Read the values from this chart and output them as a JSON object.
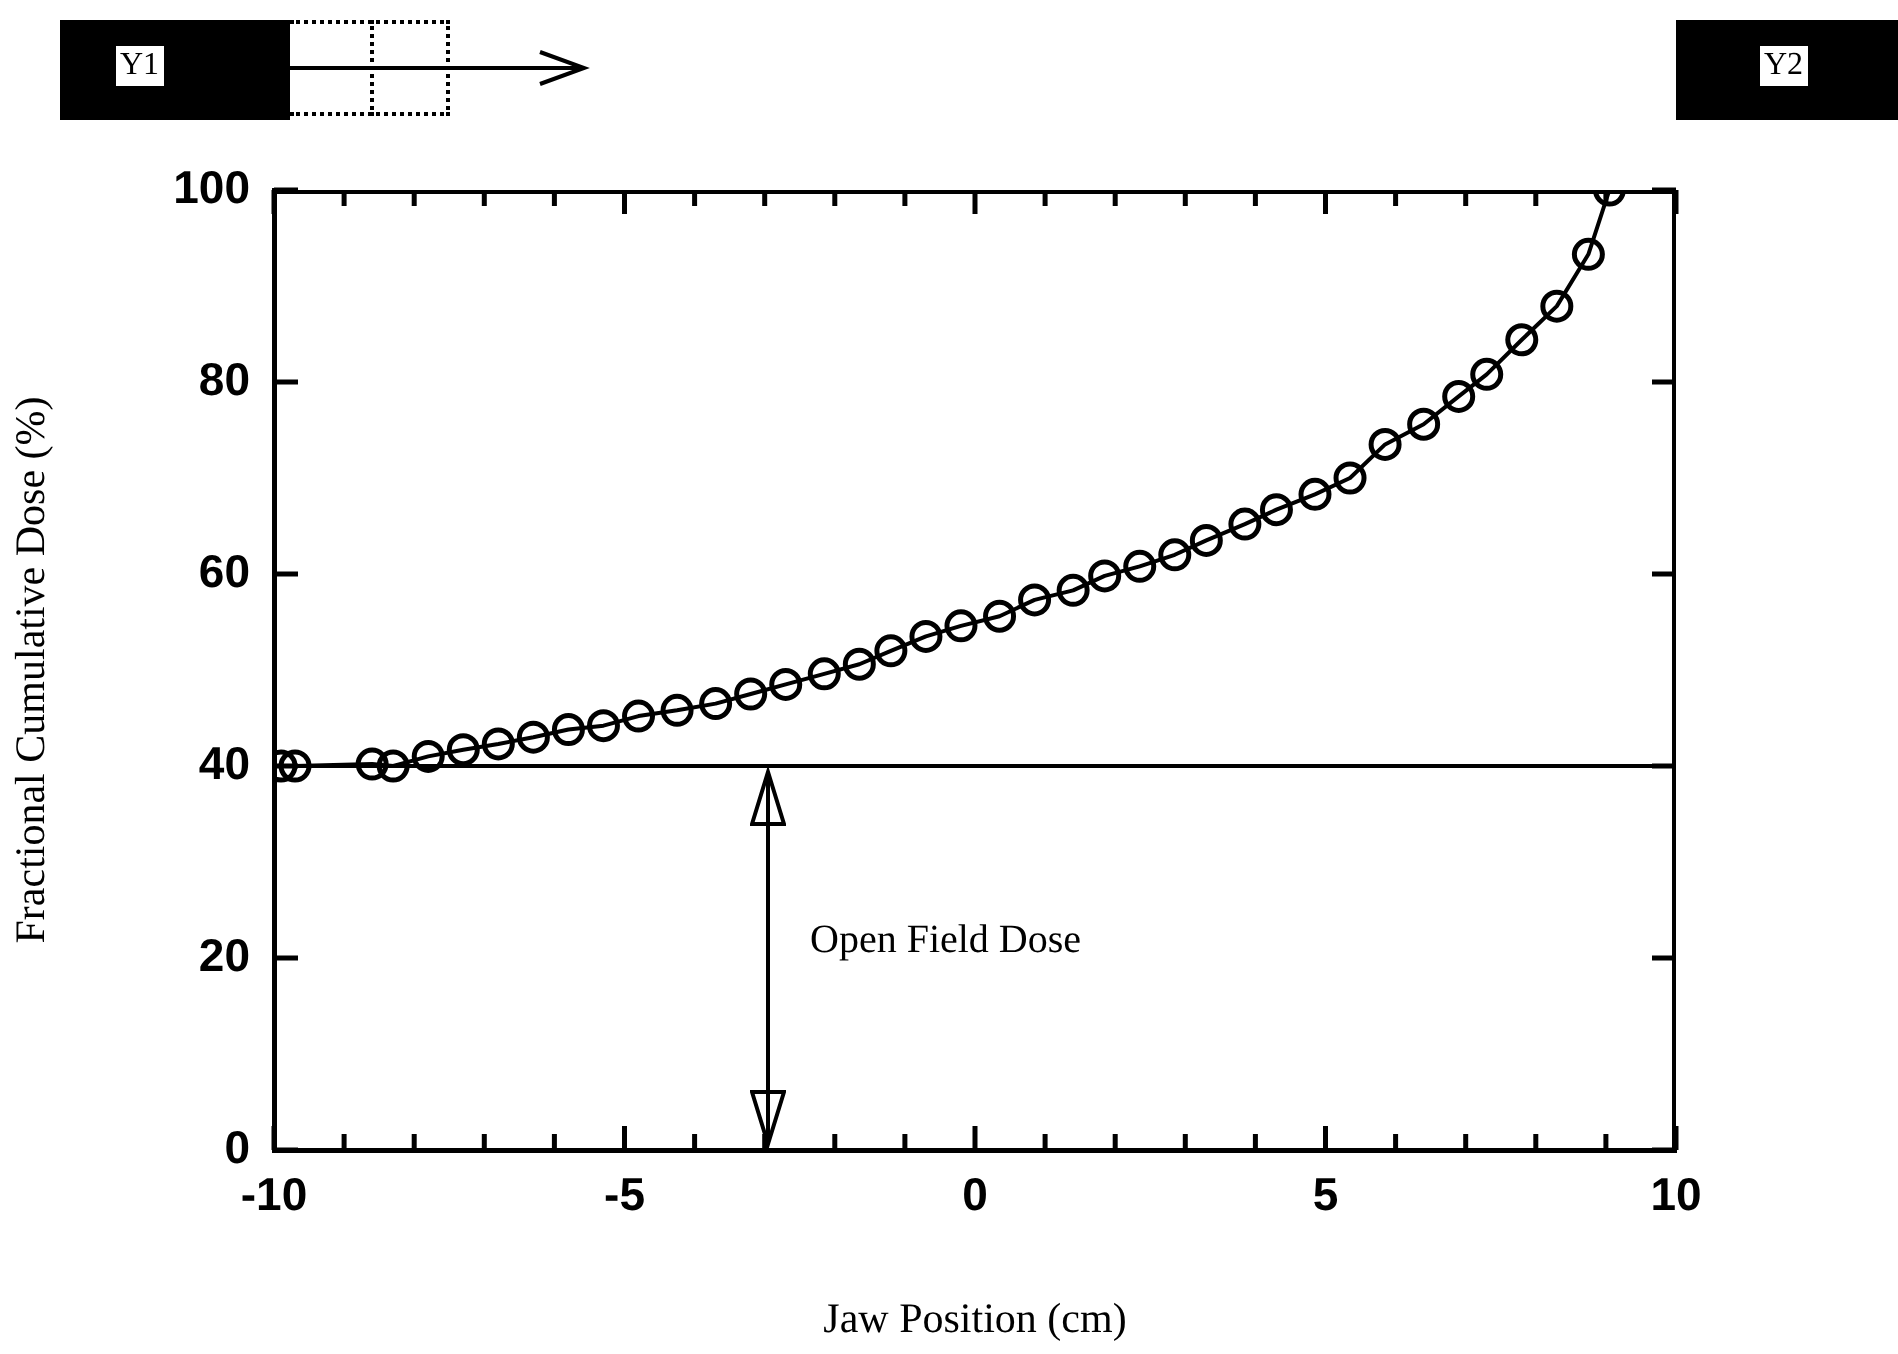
{
  "chart_data": {
    "type": "line",
    "xlabel": "Jaw Position (cm)",
    "ylabel": "Fractional Cumulative Dose (%)",
    "xlim": [
      -10,
      10
    ],
    "ylim": [
      0,
      100
    ],
    "xticks": [
      -10,
      {
        "value": -9,
        "label": null
      },
      {
        "value": -8,
        "label": null
      },
      {
        "value": -7,
        "label": null
      },
      {
        "value": -6,
        "label": null
      },
      -5,
      {
        "value": -4,
        "label": null
      },
      {
        "value": -3,
        "label": null
      },
      {
        "value": -2,
        "label": null
      },
      {
        "value": -1,
        "label": null
      },
      0,
      {
        "value": 1,
        "label": null
      },
      {
        "value": 2,
        "label": null
      },
      {
        "value": 3,
        "label": null
      },
      {
        "value": 4,
        "label": null
      },
      5,
      {
        "value": 6,
        "label": null
      },
      {
        "value": 7,
        "label": null
      },
      {
        "value": 8,
        "label": null
      },
      {
        "value": 9,
        "label": null
      },
      10
    ],
    "yticks": [
      0,
      20,
      40,
      60,
      80,
      100
    ],
    "grid": false,
    "legend": false,
    "marker": "circle",
    "line_style": "solid",
    "series": [
      {
        "color": "#000000",
        "x": [
          -9.9,
          -9.7,
          -8.6,
          -8.3,
          -7.8,
          -7.3,
          -6.8,
          -6.3,
          -5.8,
          -5.3,
          -4.8,
          -4.25,
          -3.7,
          -3.2,
          -2.7,
          -2.15,
          -1.65,
          -1.2,
          -0.7,
          -0.2,
          0.35,
          0.85,
          1.4,
          1.85,
          2.35,
          2.85,
          3.3,
          3.85,
          4.3,
          4.85,
          5.35,
          5.85,
          6.4,
          6.9,
          7.3,
          7.8,
          8.3,
          8.75,
          9.05
        ],
        "values": [
          40,
          40,
          40.2,
          40,
          41,
          41.7,
          42.3,
          43,
          43.8,
          44.2,
          45.2,
          45.8,
          46.5,
          47.5,
          48.5,
          49.6,
          50.6,
          52,
          53.5,
          54.6,
          55.6,
          57.3,
          58.3,
          59.8,
          60.8,
          62,
          63.5,
          65.2,
          66.7,
          68.3,
          70,
          73.5,
          75.6,
          78.5,
          80.8,
          84.4,
          87.9,
          93.3,
          100
        ]
      }
    ],
    "ref_lines": [
      {
        "axis": "y",
        "value": 40,
        "color": "#000000",
        "line_style": "solid"
      }
    ],
    "annotations": [
      "Open Field Dose",
      "Y1",
      "Y2"
    ]
  }
}
